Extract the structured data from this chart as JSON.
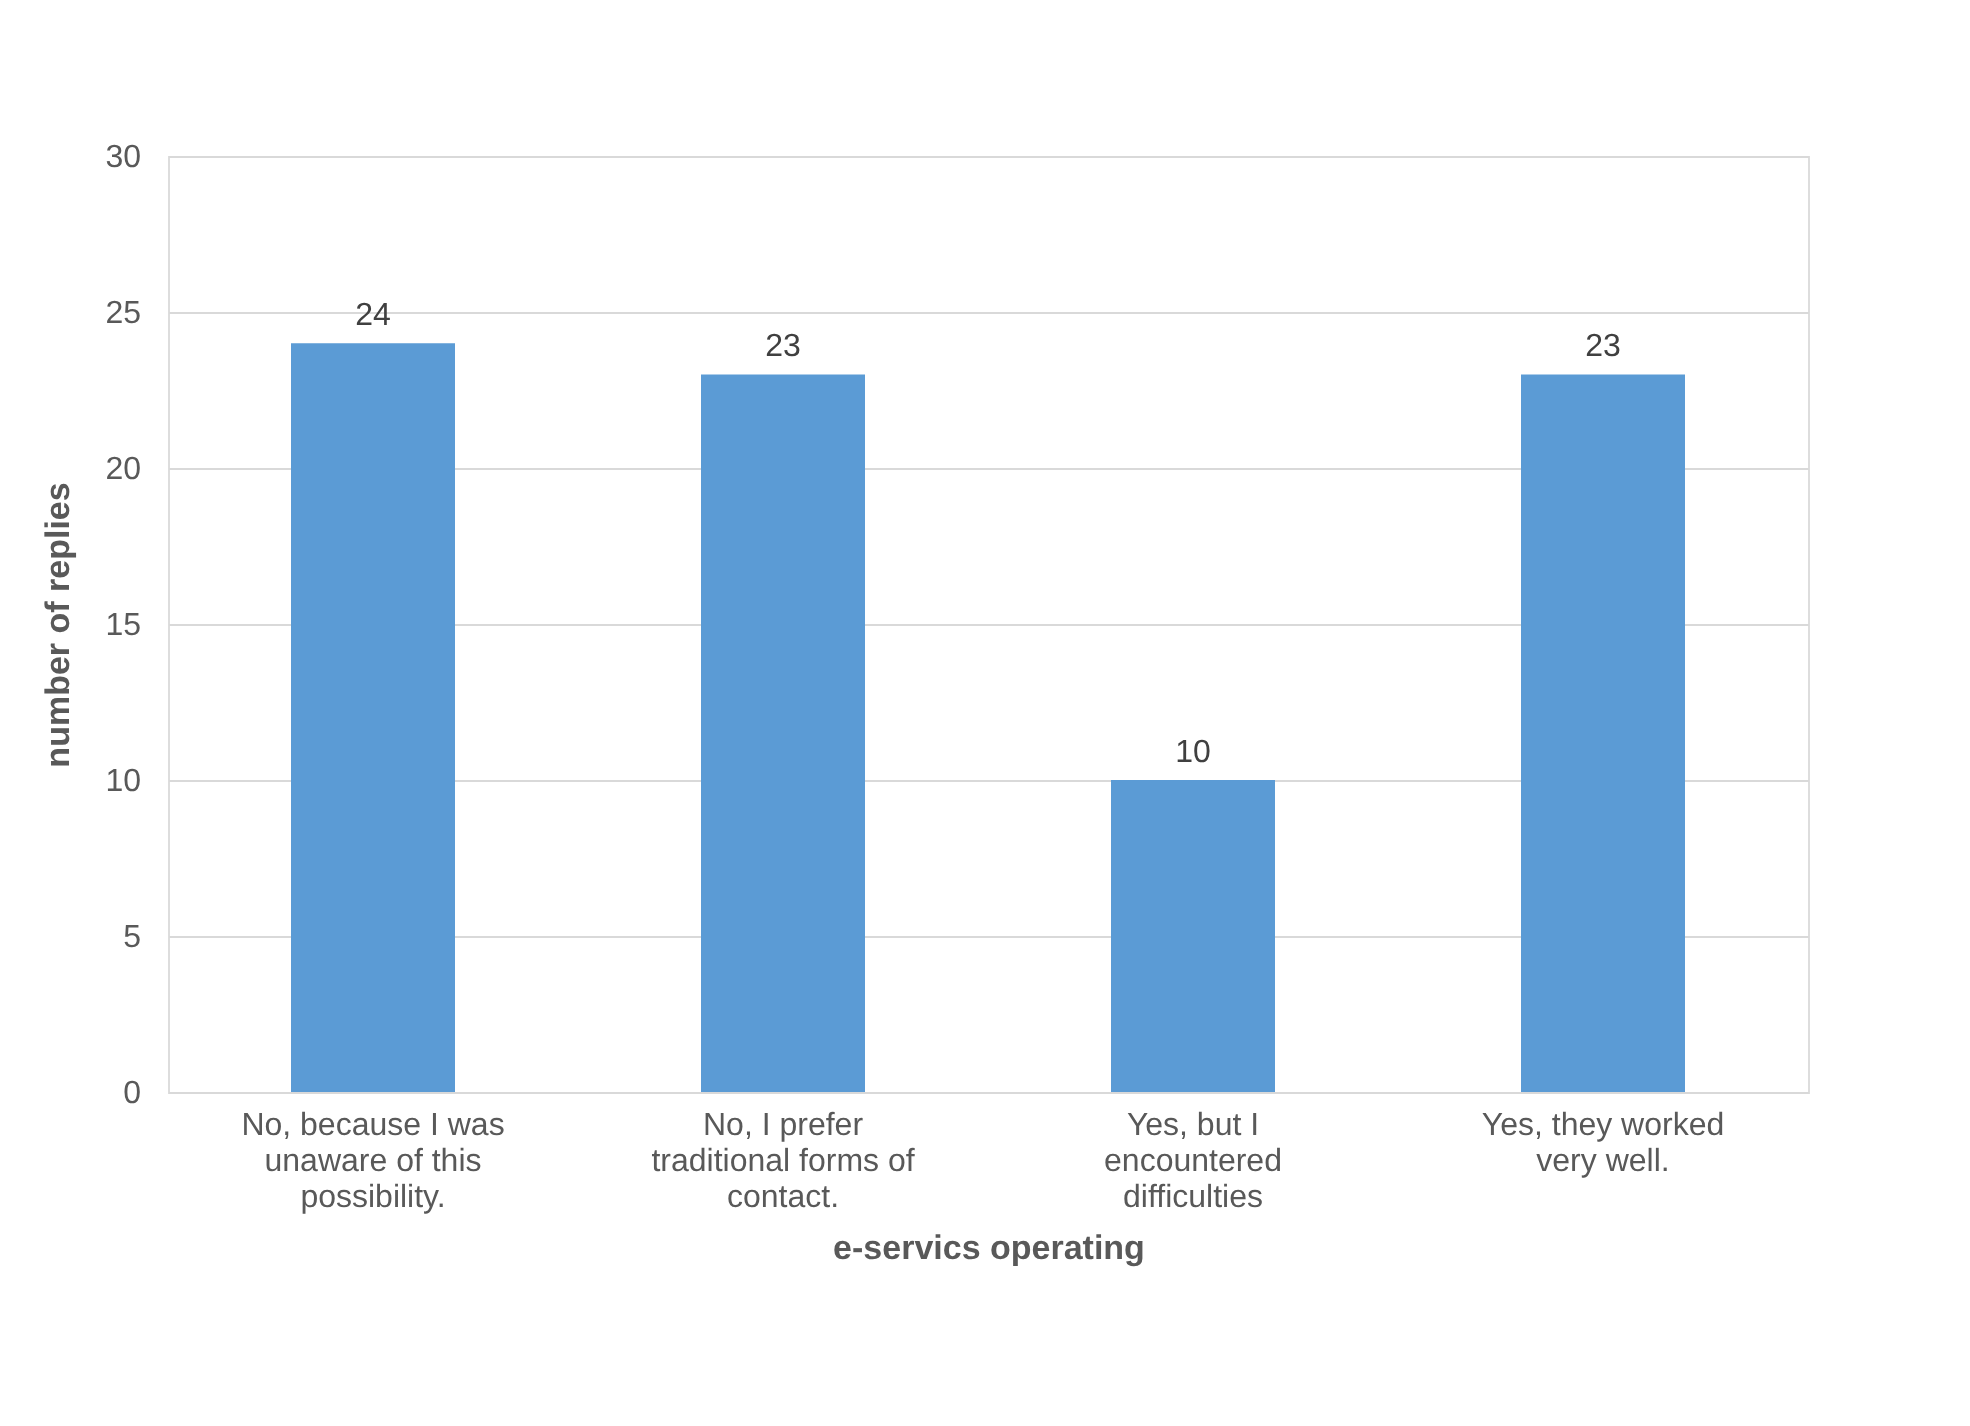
{
  "chart_data": {
    "type": "bar",
    "xlabel": "e-servics operating",
    "ylabel": "number of replies",
    "categories": [
      "No, because I was unaware of this possibility.",
      "No, I prefer traditional forms of contact.",
      "Yes, but I encountered difficulties",
      "Yes, they worked very well."
    ],
    "values": [
      24,
      23,
      10,
      23
    ],
    "color": "#5b9bd5",
    "ylim": [
      0,
      30
    ],
    "yticks": [
      0,
      5,
      10,
      15,
      20,
      25,
      30
    ],
    "grid": "y",
    "data_labels": true
  }
}
